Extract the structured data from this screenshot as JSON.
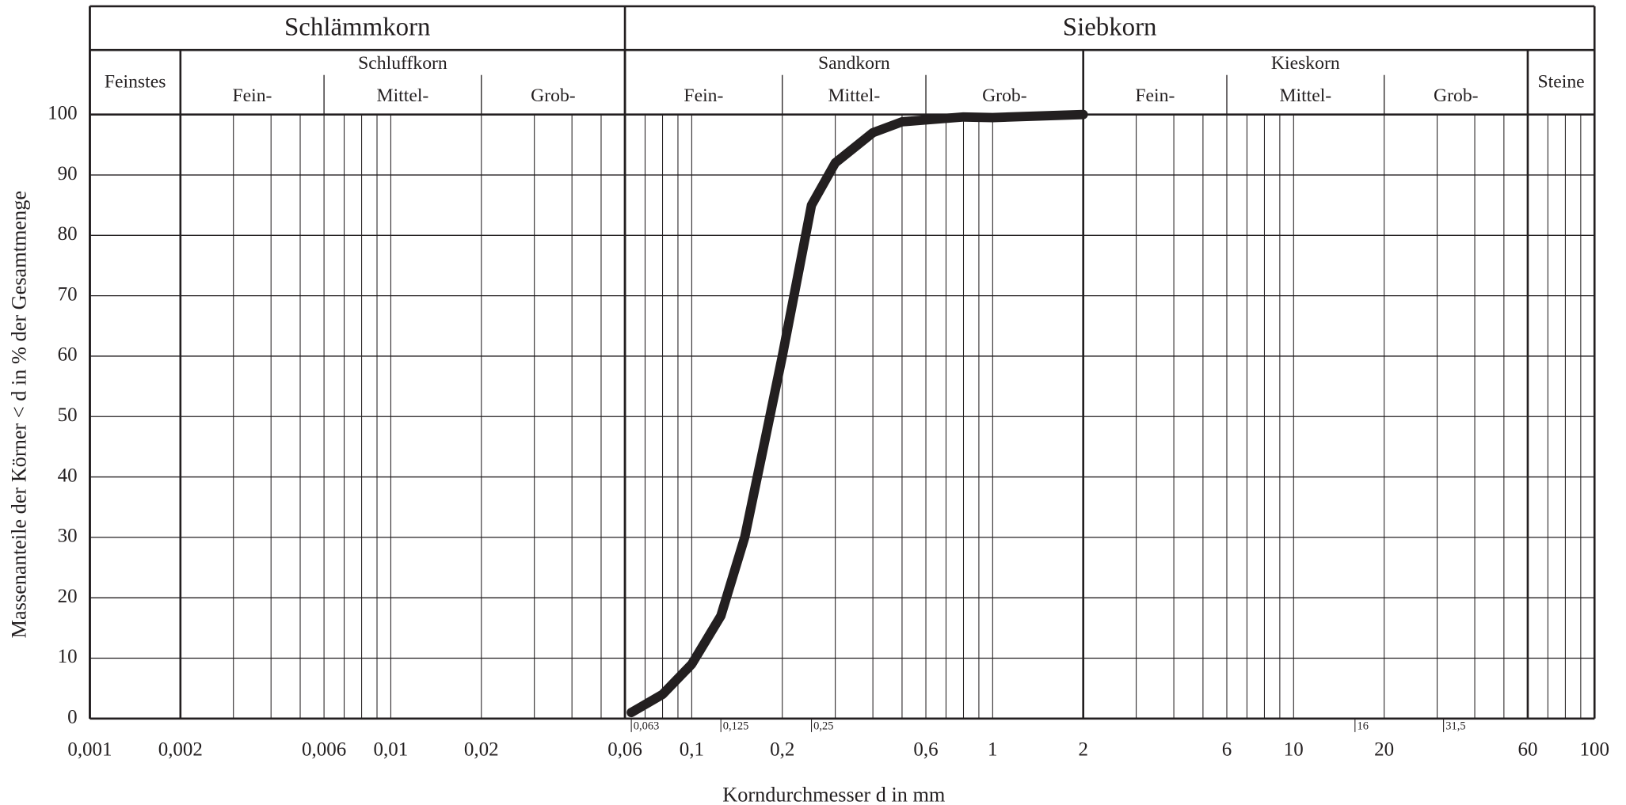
{
  "chart_data": {
    "type": "line",
    "xlabel": "Korndurchmesser d in mm",
    "ylabel": "Massenanteile der Körner < d in % der Gesamtmenge",
    "log_x": true,
    "grid": true,
    "xlim": [
      0.001,
      100
    ],
    "ylim": [
      0,
      100
    ],
    "yticks": [
      0,
      10,
      20,
      30,
      40,
      50,
      60,
      70,
      80,
      90,
      100
    ],
    "xticks": [
      {
        "value": 0.001,
        "label": "0,001"
      },
      {
        "value": 0.002,
        "label": "0,002"
      },
      {
        "value": 0.006,
        "label": "0,006"
      },
      {
        "value": 0.01,
        "label": "0,01"
      },
      {
        "value": 0.02,
        "label": "0,02"
      },
      {
        "value": 0.06,
        "label": "0,06"
      },
      {
        "value": 0.1,
        "label": "0,1"
      },
      {
        "value": 0.2,
        "label": "0,2"
      },
      {
        "value": 0.6,
        "label": "0,6"
      },
      1,
      2,
      6,
      10,
      20,
      60,
      100
    ],
    "xticks_minor": [
      {
        "value": 0.063,
        "label": "0,063"
      },
      {
        "value": 0.125,
        "label": "0,125"
      },
      {
        "value": 0.25,
        "label": "0,25"
      },
      16,
      {
        "value": 31.5,
        "label": "31,5"
      }
    ],
    "xgrid": [
      0.003,
      0.004,
      0.005,
      0.006,
      0.007,
      0.008,
      0.009,
      0.01,
      0.02,
      0.03,
      0.04,
      0.05,
      0.07,
      0.08,
      0.09,
      0.1,
      0.2,
      0.3,
      0.4,
      0.5,
      0.6,
      0.7,
      0.8,
      0.9,
      1,
      3,
      4,
      5,
      6,
      7,
      8,
      9,
      10,
      20,
      30,
      40,
      50,
      70,
      80,
      90
    ],
    "groups": [
      {
        "label": "Schlämmkorn",
        "range": [
          0.001,
          0.06
        ]
      },
      {
        "label": "Siebkorn",
        "range": [
          0.06,
          100
        ]
      }
    ],
    "classes": [
      {
        "label": "Feinstes",
        "range": [
          0.001,
          0.002
        ],
        "subs": []
      },
      {
        "label": "Schluffkorn",
        "range": [
          0.002,
          0.06
        ],
        "subs": [
          {
            "label": "Fein-",
            "range": [
              0.002,
              0.006
            ]
          },
          {
            "label": "Mittel-",
            "range": [
              0.006,
              0.02
            ]
          },
          {
            "label": "Grob-",
            "range": [
              0.02,
              0.06
            ]
          }
        ]
      },
      {
        "label": "Sandkorn",
        "range": [
          0.06,
          2
        ],
        "subs": [
          {
            "label": "Fein-",
            "range": [
              0.06,
              0.2
            ]
          },
          {
            "label": "Mittel-",
            "range": [
              0.2,
              0.6
            ]
          },
          {
            "label": "Grob-",
            "range": [
              0.6,
              2
            ]
          }
        ]
      },
      {
        "label": "Kieskorn",
        "range": [
          2,
          60
        ],
        "subs": [
          {
            "label": "Fein-",
            "range": [
              2,
              6
            ]
          },
          {
            "label": "Mittel-",
            "range": [
              6,
              20
            ]
          },
          {
            "label": "Grob-",
            "range": [
              20,
              60
            ]
          }
        ]
      },
      {
        "label": "Steine",
        "range": [
          60,
          100
        ],
        "subs": []
      }
    ],
    "series": [
      {
        "color": "#231f20",
        "x": [
          0.063,
          0.08,
          0.1,
          0.125,
          0.15,
          0.175,
          0.2,
          0.25,
          0.3,
          0.4,
          0.5,
          0.8,
          1,
          2
        ],
        "values": [
          1,
          4,
          9,
          17,
          30,
          46,
          60,
          85,
          92,
          97,
          98.8,
          99.6,
          99.5,
          100
        ]
      }
    ]
  }
}
